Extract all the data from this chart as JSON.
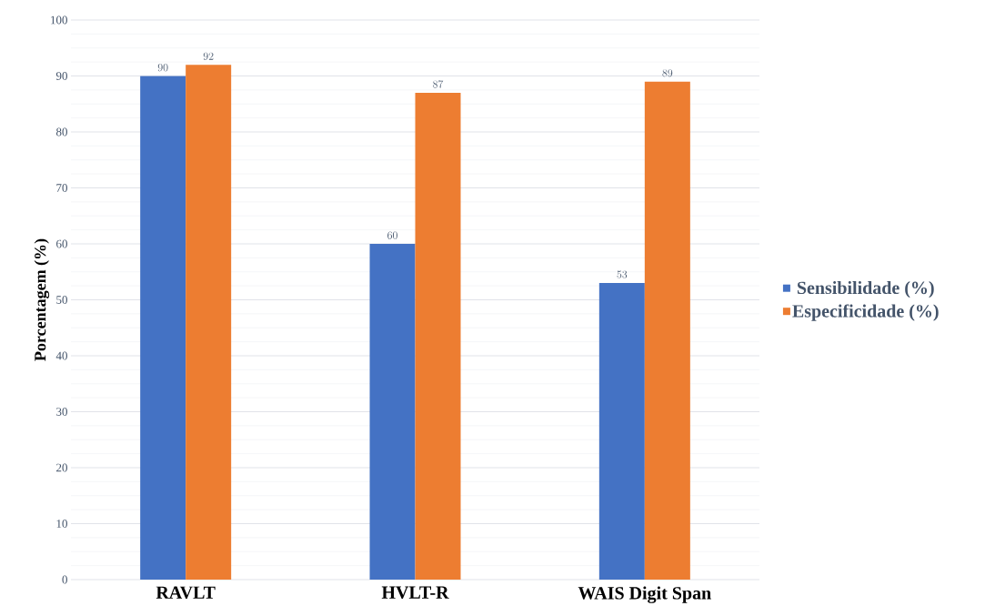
{
  "chart_data": {
    "type": "bar",
    "ylabel": "Porcentagem (%)",
    "categories": [
      "RAVLT",
      "HVLT-R",
      "WAIS Digit Span"
    ],
    "series": [
      {
        "name": "Sensibilidade (%)",
        "color": "#4472c4",
        "values": [
          90,
          60,
          53
        ]
      },
      {
        "name": "Especificidade (%)",
        "color": "#ed7d31",
        "values": [
          92,
          87,
          89
        ]
      }
    ],
    "ylim": [
      0,
      100
    ],
    "yticks": [
      0,
      10,
      20,
      30,
      40,
      50,
      60,
      70,
      80,
      90,
      100
    ],
    "grid": "y",
    "legend": "right",
    "data_labels": true
  }
}
